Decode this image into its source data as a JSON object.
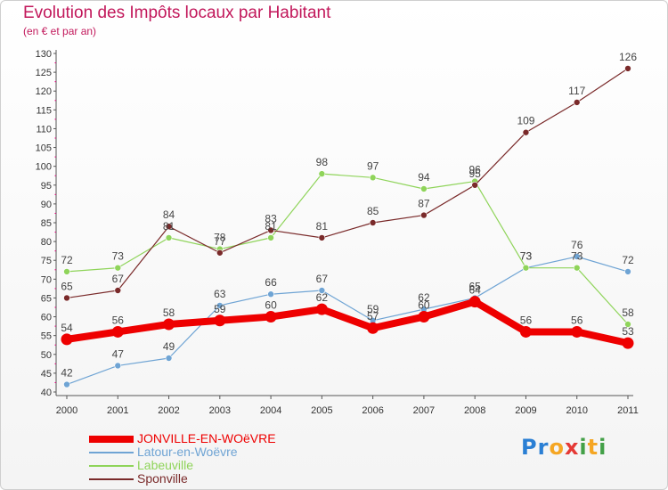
{
  "header": {
    "title": "Evolution des Impôts locaux par Habitant",
    "subtitle": "(en € et par an)"
  },
  "brand": {
    "letters": [
      {
        "char": "P",
        "color": "#2a7fd4"
      },
      {
        "char": "r",
        "color": "#2a7fd4"
      },
      {
        "char": "o",
        "color": "#f5a623"
      },
      {
        "char": "x",
        "color": "#e53935"
      },
      {
        "char": "i",
        "color": "#43a047"
      },
      {
        "char": "t",
        "color": "#f5a623"
      },
      {
        "char": "i",
        "color": "#43a047"
      }
    ]
  },
  "chart_data": {
    "type": "line",
    "title": "Evolution des Impôts locaux par Habitant",
    "subtitle": "(en € et par an)",
    "xlabel": "",
    "ylabel": "",
    "x": [
      "2000",
      "2001",
      "2002",
      "2003",
      "2004",
      "2005",
      "2006",
      "2007",
      "2008",
      "2009",
      "2010",
      "2011"
    ],
    "ylim": [
      40,
      130
    ],
    "yticks": [
      40,
      45,
      50,
      55,
      60,
      65,
      70,
      75,
      80,
      85,
      90,
      95,
      100,
      105,
      110,
      115,
      120,
      125,
      130
    ],
    "grid": false,
    "legend_position": "bottom-left",
    "series": [
      {
        "name": "JONVILLE-EN-WOëVRE",
        "color": "#ee0000",
        "emphasis": true,
        "values": [
          54,
          56,
          58,
          59,
          60,
          62,
          57,
          60,
          64,
          56,
          56,
          53
        ]
      },
      {
        "name": "Latour-en-Woëvre",
        "color": "#6fa4d4",
        "emphasis": false,
        "values": [
          42,
          47,
          49,
          63,
          66,
          67,
          59,
          62,
          65,
          73,
          76,
          72
        ]
      },
      {
        "name": "Labeuville",
        "color": "#8fd45a",
        "emphasis": false,
        "values": [
          72,
          73,
          81,
          78,
          81,
          98,
          97,
          94,
          96,
          73,
          73,
          58
        ]
      },
      {
        "name": "Sponville",
        "color": "#7a2a2a",
        "emphasis": false,
        "values": [
          65,
          67,
          84,
          77,
          83,
          81,
          85,
          87,
          95,
          109,
          117,
          126
        ]
      }
    ]
  }
}
